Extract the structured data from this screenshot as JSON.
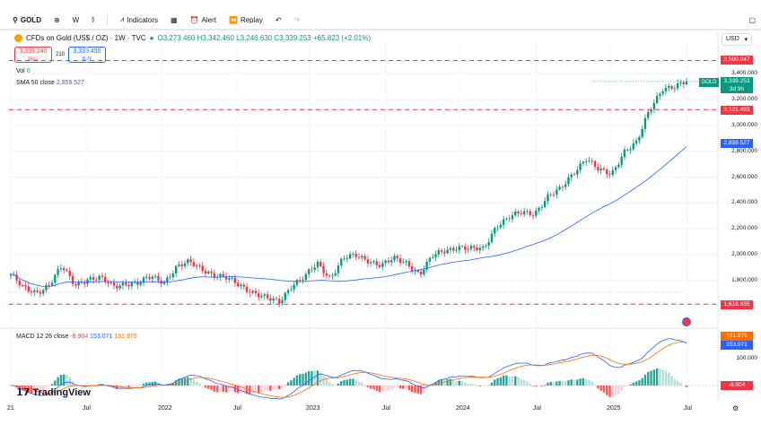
{
  "toolbar": {
    "symbol": "GOLD",
    "interval": "W",
    "indicators": "Indicators",
    "alert": "Alert",
    "replay": "Replay"
  },
  "legend": {
    "title": "CFDs on Gold (US$ / OZ) · 1W · TVC",
    "ohlc": "O3,273.460 H3,342.460 L3,246.630 C3,339.253 +65.823 (+2.01%)"
  },
  "trade": {
    "sell_price": "3,339.240",
    "sell": "SELL",
    "spread": "210",
    "buy_price": "3,339.450",
    "buy": "BUY"
  },
  "indicators": {
    "vol_label": "Vol",
    "vol_value": "0",
    "sma_label": "SMA 50 close",
    "sma_value": "2,859.527",
    "macd_label": "MACD 12 26 close",
    "macd_hist": "-8.904",
    "macd_line": "153.071",
    "macd_signal": "161.975"
  },
  "currency": "USD",
  "price_axis": [
    "3,400.000",
    "3,200.000",
    "3,000.000",
    "2,800.000",
    "2,600.000",
    "2,400.000",
    "2,200.000",
    "2,000.000",
    "1,800.000"
  ],
  "price_tags": {
    "high_line": "3,500.047",
    "low_line": "3,121.493",
    "bottom_line": "1,618.835",
    "gold": "GOLD",
    "last": "3,339.253",
    "countdown": "3d 9h",
    "sma": "2,859.527"
  },
  "macd_axis": {
    "tick": "100.000",
    "signal": "161.975",
    "line": "153.071",
    "hist": "-8.904"
  },
  "time_axis": [
    "21",
    "Jul",
    "2022",
    "Jul",
    "2023",
    "Jul",
    "2024",
    "Jul",
    "2025",
    "Jul"
  ],
  "brand": "TradingView",
  "colors": {
    "up": "#089981",
    "down": "#f23645",
    "sma": "#2962ff",
    "macd": "#2962ff",
    "signal": "#ff6d00"
  },
  "chart_data": {
    "type": "candlestick",
    "interval": "1W",
    "start": "2021-01",
    "monthly_closes": [
      1850,
      1735,
      1710,
      1770,
      1905,
      1770,
      1815,
      1815,
      1755,
      1785,
      1775,
      1830,
      1795,
      1905,
      1940,
      1895,
      1840,
      1810,
      1765,
      1710,
      1660,
      1635,
      1770,
      1825,
      1930,
      1825,
      1970,
      1990,
      1960,
      1920,
      1965,
      1940,
      1850,
      1985,
      2035,
      2065,
      2040,
      2045,
      2230,
      2285,
      2325,
      2325,
      2445,
      2500,
      2635,
      2745,
      2650,
      2625,
      2800,
      2860,
      3125,
      3290,
      3290,
      3339.253
    ],
    "horizontal_lines": [
      3500.047,
      3121.493,
      1618.835
    ],
    "ylim": [
      1600,
      3560
    ]
  }
}
